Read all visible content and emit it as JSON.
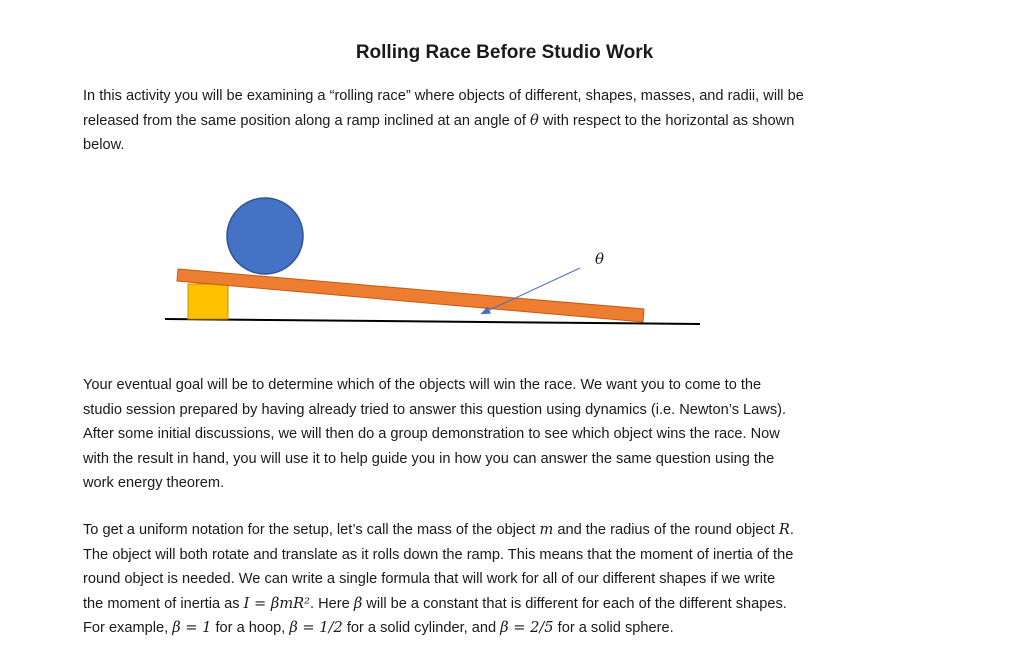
{
  "title": "Rolling Race Before Studio Work",
  "intro": {
    "line1": "In this activity you will be examining a “rolling race” where objects of different, shapes, masses, and radii, will be",
    "line2_pre": "released from the same position along a ramp inclined at an angle of ",
    "line2_theta": "θ",
    "line2_post": " with respect to the horizontal as shown",
    "line3": "below."
  },
  "diagram": {
    "angle_label": "θ",
    "colors": {
      "ball": "#4472C4",
      "ball_stroke": "#2F528F",
      "ramp": "#ED7D31",
      "ramp_stroke": "#C55A11",
      "support": "#FFC000",
      "support_stroke": "#C59400",
      "ground": "#000000",
      "arrow": "#4472C4"
    }
  },
  "goal": {
    "lines": [
      "Your eventual goal will be to determine which of the objects will win the race.  We want you to come to the",
      "studio session prepared by having already tried to answer this question using dynamics (i.e. Newton’s Laws).",
      "After some initial discussions, we will then do a group demonstration to see which object wins the race.  Now",
      "with the result in hand, you will use it to help guide you in how you can answer the same question using the",
      "work energy theorem."
    ]
  },
  "notation": {
    "l1_pre": "To get a uniform notation for the setup, let’s call the mass of the object ",
    "l1_m": "m",
    "l1_mid": " and the radius of the round object ",
    "l1_R": "R",
    "l1_post": ".",
    "l2": "The object will both rotate and translate as it rolls down the ramp.  This means that the moment of inertia of the",
    "l3": "round object is needed.  We can write a single formula that will work for all of our different shapes if we write",
    "l4_pre": "the moment of inertia as ",
    "l4_eq": "I = βmR²",
    "l4_mid": ".  Here ",
    "l4_beta": "β",
    "l4_post": " will be a constant that is different for each of the different shapes.",
    "l5_pre": "For example, ",
    "l5_eq1": "β = 1",
    "l5_a": " for a hoop,  ",
    "l5_eq2": "β = 1/2",
    "l5_b": " for a solid cylinder, and ",
    "l5_eq3": "β = 2/5",
    "l5_c": " for a solid sphere."
  }
}
